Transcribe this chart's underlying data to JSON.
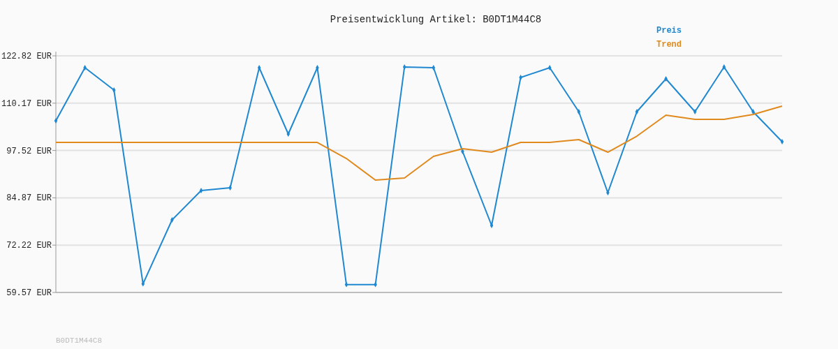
{
  "chart_data": {
    "type": "line",
    "title": "Preisentwicklung Artikel: B0DT1M44C8",
    "annotations": [
      "B0DT1M44C8"
    ],
    "categories": [
      null,
      null,
      null,
      null,
      null,
      null,
      null,
      null,
      null,
      null,
      null,
      null,
      null,
      null,
      null,
      null,
      null,
      null,
      null,
      null,
      null,
      null,
      null,
      null,
      null,
      null
    ],
    "series": [
      {
        "name": "Preis",
        "color": "#1f88d0",
        "marker": "diamond",
        "values": [
          105.47,
          119.65,
          113.68,
          61.87,
          78.97,
          86.81,
          87.56,
          119.65,
          101.92,
          119.65,
          61.69,
          61.69,
          119.84,
          119.65,
          97.26,
          77.48,
          117.04,
          119.65,
          107.89,
          86.25,
          107.89,
          116.66,
          107.89,
          119.84,
          107.89,
          99.87
        ]
      },
      {
        "name": "Trend",
        "color": "#e08a1e",
        "marker": "none",
        "values": [
          99.68,
          99.68,
          99.68,
          99.68,
          99.68,
          99.68,
          99.68,
          99.68,
          99.68,
          99.68,
          95.39,
          89.61,
          90.17,
          95.95,
          98.0,
          97.07,
          99.68,
          99.68,
          100.43,
          97.07,
          101.36,
          106.96,
          105.84,
          105.84,
          107.14,
          109.38
        ]
      }
    ],
    "ylim": [
      59.57,
      122.82
    ],
    "yticks": [
      {
        "value": 59.57,
        "label": "59.57 EUR"
      },
      {
        "value": 72.22,
        "label": "72.22 EUR"
      },
      {
        "value": 84.87,
        "label": "84.87 EUR"
      },
      {
        "value": 97.52,
        "label": "97.52 EUR"
      },
      {
        "value": 110.17,
        "label": "110.17 EUR"
      },
      {
        "value": 122.82,
        "label": "122.82 EUR"
      }
    ],
    "grid": "y",
    "legend": "top right",
    "tick_labels": "y"
  }
}
